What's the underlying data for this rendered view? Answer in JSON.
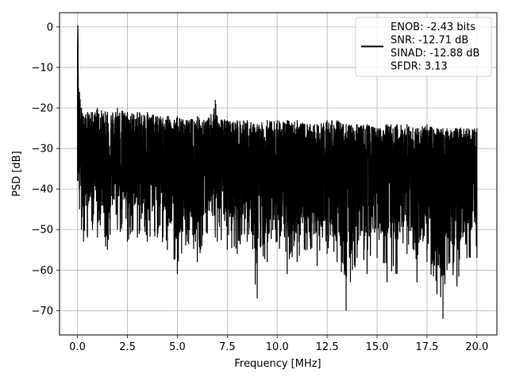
{
  "chart_data": {
    "type": "line",
    "title": "",
    "xlabel": "Frequency [MHz]",
    "ylabel": "PSD [dB]",
    "xlim": [
      -0.9,
      21.0
    ],
    "ylim": [
      -76.0,
      3.5
    ],
    "xticks": [
      0.0,
      2.5,
      5.0,
      7.5,
      10.0,
      12.5,
      15.0,
      17.5,
      20.0
    ],
    "xtick_labels": [
      "0.0",
      "2.5",
      "5.0",
      "7.5",
      "10.0",
      "12.5",
      "15.0",
      "17.5",
      "20.0"
    ],
    "yticks": [
      0,
      -10,
      -20,
      -30,
      -40,
      -50,
      -60,
      -70
    ],
    "ytick_labels": [
      "0",
      "−10",
      "−20",
      "−30",
      "−40",
      "−50",
      "−60",
      "−70"
    ],
    "grid": true,
    "legend_position": "top-right",
    "legend": [
      "ENOB: -2.43 bits",
      "SNR: -12.71 dB",
      "SINAD: -12.88 dB",
      "SFDR: 3.13"
    ],
    "series": [
      {
        "color": "#000000",
        "x": [
          0.0,
          0.02,
          0.05,
          0.1,
          0.2,
          0.3,
          0.5,
          0.75,
          1.0,
          1.5,
          2.0,
          2.5,
          3.0,
          3.5,
          4.0,
          4.5,
          5.0,
          5.5,
          6.0,
          6.5,
          6.9,
          7.0,
          7.5,
          8.0,
          8.5,
          9.0,
          9.5,
          10.0,
          10.5,
          11.0,
          11.5,
          12.0,
          12.5,
          13.0,
          13.45,
          14.0,
          14.5,
          15.0,
          15.5,
          16.0,
          16.5,
          17.0,
          17.5,
          18.0,
          18.3,
          18.5,
          19.0,
          19.5,
          20.0
        ],
        "y": [
          -6,
          0,
          -15,
          -16,
          -20,
          -22,
          -21,
          -21,
          -20,
          -21,
          -20,
          -21,
          -21,
          -21,
          -22,
          -22,
          -22,
          -23,
          -22,
          -23,
          -18,
          -22,
          -23,
          -23,
          -23,
          -24,
          -23,
          -23,
          -23,
          -23,
          -24,
          -24,
          -23,
          -23,
          -24,
          -24,
          -24,
          -25,
          -24,
          -24,
          -24,
          -25,
          -24,
          -25,
          -25,
          -25,
          -25,
          -25,
          -25
        ],
        "lower": [
          -38,
          -38,
          -36,
          -45,
          -50,
          -53,
          -52,
          -50,
          -52,
          -55,
          -50,
          -53,
          -52,
          -53,
          -52,
          -55,
          -61,
          -53,
          -58,
          -51,
          -52,
          -53,
          -55,
          -56,
          -53,
          -67,
          -58,
          -53,
          -61,
          -58,
          -55,
          -59,
          -56,
          -58,
          -70,
          -57,
          -61,
          -57,
          -63,
          -61,
          -56,
          -63,
          -58,
          -66,
          -72,
          -60,
          -64,
          -57,
          -57
        ],
        "mean": [
          -30,
          -30,
          -30,
          -31,
          -32,
          -32,
          -32,
          -33,
          -33,
          -33,
          -33,
          -33,
          -33,
          -33,
          -34,
          -34,
          -34,
          -34,
          -34,
          -34,
          -34,
          -34,
          -34,
          -35,
          -35,
          -35,
          -35,
          -35,
          -35,
          -35,
          -35,
          -35,
          -35,
          -35,
          -35,
          -35,
          -35,
          -35,
          -35,
          -35,
          -35,
          -35,
          -35,
          -35,
          -35,
          -35,
          -35,
          -35,
          -35
        ]
      }
    ]
  }
}
